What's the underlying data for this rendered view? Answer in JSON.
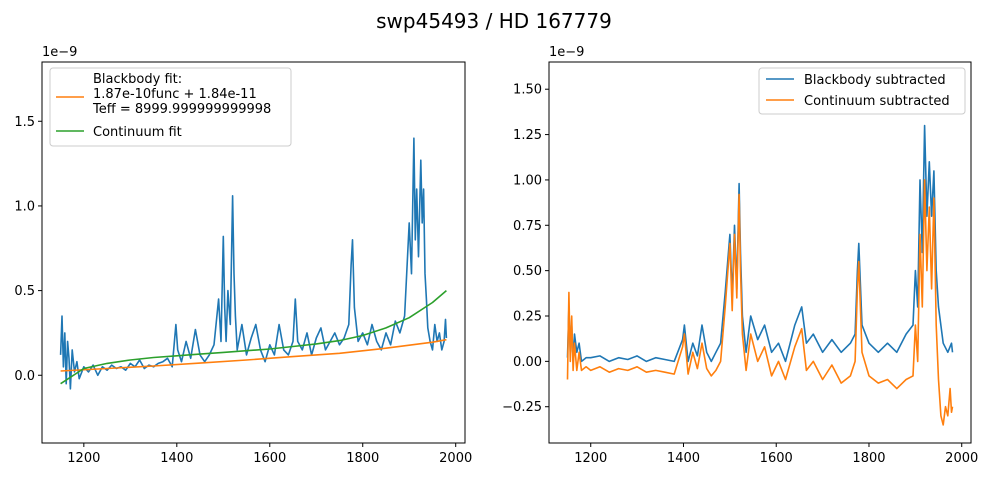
{
  "figure": {
    "title": "swp45493 / HD 167779"
  },
  "chart_data": [
    {
      "type": "line",
      "id": "left",
      "offset_text": "1e−9",
      "xlim": [
        1110,
        2020
      ],
      "ylim": [
        -0.4,
        1.85
      ],
      "xticks": [
        1200,
        1400,
        1600,
        1800,
        2000
      ],
      "yticks": [
        0.0,
        0.5,
        1.0,
        1.5
      ],
      "ytick_labels": [
        "0.0",
        "0.5",
        "1.0",
        "1.5"
      ],
      "legend_position": "upper-left",
      "legend": {
        "bb_header": "Blackbody fit:",
        "bb_line1": "1.87e-10func + 1.84e-11",
        "bb_line2": "Teff = 8999.999999999998",
        "continuum": "Continuum fit"
      },
      "series": [
        {
          "role": "flux",
          "color": "#1f77b4",
          "x": [
            1150,
            1153,
            1156,
            1159,
            1162,
            1165,
            1168,
            1171,
            1175,
            1180,
            1185,
            1190,
            1200,
            1210,
            1220,
            1230,
            1240,
            1250,
            1260,
            1270,
            1280,
            1290,
            1300,
            1310,
            1320,
            1330,
            1340,
            1350,
            1360,
            1370,
            1380,
            1390,
            1398,
            1402,
            1410,
            1420,
            1430,
            1440,
            1450,
            1460,
            1470,
            1480,
            1490,
            1495,
            1500,
            1503,
            1506,
            1510,
            1515,
            1520,
            1523,
            1526,
            1530,
            1540,
            1550,
            1560,
            1570,
            1580,
            1590,
            1600,
            1610,
            1620,
            1630,
            1640,
            1650,
            1655,
            1660,
            1670,
            1680,
            1690,
            1700,
            1710,
            1720,
            1730,
            1740,
            1750,
            1760,
            1770,
            1775,
            1778,
            1782,
            1790,
            1800,
            1810,
            1820,
            1830,
            1840,
            1850,
            1860,
            1870,
            1880,
            1890,
            1900,
            1905,
            1910,
            1913,
            1916,
            1920,
            1925,
            1928,
            1931,
            1934,
            1937,
            1940,
            1945,
            1950,
            1955,
            1960,
            1965,
            1970,
            1975,
            1978,
            1980
          ],
          "y": [
            0.12,
            0.35,
            0.05,
            0.25,
            -0.05,
            0.2,
            0.1,
            -0.08,
            0.15,
            0.02,
            0.08,
            -0.02,
            0.05,
            0.02,
            0.06,
            0.0,
            0.05,
            0.03,
            0.06,
            0.04,
            0.05,
            0.03,
            0.07,
            0.05,
            0.09,
            0.04,
            0.06,
            0.05,
            0.07,
            0.08,
            0.1,
            0.05,
            0.3,
            0.15,
            0.08,
            0.2,
            0.1,
            0.27,
            0.12,
            0.08,
            0.12,
            0.18,
            0.45,
            0.2,
            0.82,
            0.4,
            0.2,
            0.5,
            0.3,
            1.06,
            0.6,
            0.35,
            0.15,
            0.3,
            0.12,
            0.22,
            0.3,
            0.15,
            0.08,
            0.18,
            0.12,
            0.3,
            0.15,
            0.12,
            0.2,
            0.45,
            0.2,
            0.15,
            0.25,
            0.12,
            0.22,
            0.28,
            0.15,
            0.2,
            0.25,
            0.18,
            0.22,
            0.3,
            0.65,
            0.8,
            0.4,
            0.2,
            0.25,
            0.18,
            0.3,
            0.2,
            0.15,
            0.25,
            0.18,
            0.32,
            0.25,
            0.35,
            0.9,
            0.6,
            1.4,
            0.8,
            1.1,
            0.7,
            1.27,
            0.9,
            1.1,
            0.6,
            0.45,
            0.28,
            0.2,
            0.15,
            0.3,
            0.2,
            0.25,
            0.15,
            0.2,
            0.33,
            0.22
          ]
        },
        {
          "role": "blackbody fit",
          "color": "#ff7f0e",
          "x": [
            1150,
            1250,
            1350,
            1450,
            1550,
            1650,
            1750,
            1850,
            1950,
            1980
          ],
          "y": [
            0.025,
            0.04,
            0.055,
            0.072,
            0.09,
            0.11,
            0.13,
            0.16,
            0.195,
            0.21
          ]
        },
        {
          "role": "continuum fit",
          "color": "#2ca02c",
          "x": [
            1150,
            1200,
            1250,
            1300,
            1350,
            1400,
            1450,
            1500,
            1550,
            1600,
            1650,
            1700,
            1750,
            1800,
            1850,
            1900,
            1950,
            1980
          ],
          "y": [
            -0.05,
            0.04,
            0.07,
            0.09,
            0.105,
            0.115,
            0.125,
            0.135,
            0.145,
            0.155,
            0.17,
            0.185,
            0.205,
            0.235,
            0.28,
            0.34,
            0.43,
            0.5
          ]
        }
      ]
    },
    {
      "type": "line",
      "id": "right",
      "offset_text": "1e−9",
      "xlim": [
        1110,
        2020
      ],
      "ylim": [
        -0.45,
        1.65
      ],
      "xticks": [
        1200,
        1400,
        1600,
        1800,
        2000
      ],
      "yticks": [
        -0.25,
        0.0,
        0.25,
        0.5,
        0.75,
        1.0,
        1.25,
        1.5
      ],
      "ytick_labels": [
        "−0.25",
        "0.00",
        "0.25",
        "0.50",
        "0.75",
        "1.00",
        "1.25",
        "1.50"
      ],
      "legend_position": "upper-right",
      "legend": {
        "blackbody": "Blackbody subtracted",
        "continuum": "Continuum subtracted"
      },
      "series": [
        {
          "name": "Blackbody subtracted",
          "color": "#1f77b4",
          "x": [
            1150,
            1153,
            1156,
            1159,
            1162,
            1165,
            1170,
            1175,
            1180,
            1190,
            1200,
            1220,
            1240,
            1260,
            1280,
            1300,
            1320,
            1340,
            1360,
            1380,
            1398,
            1402,
            1410,
            1420,
            1430,
            1440,
            1450,
            1460,
            1470,
            1480,
            1490,
            1500,
            1505,
            1510,
            1515,
            1520,
            1523,
            1527,
            1535,
            1545,
            1560,
            1575,
            1590,
            1605,
            1620,
            1640,
            1655,
            1665,
            1680,
            1700,
            1720,
            1740,
            1760,
            1770,
            1775,
            1778,
            1785,
            1800,
            1820,
            1840,
            1860,
            1880,
            1895,
            1900,
            1905,
            1910,
            1915,
            1920,
            1925,
            1930,
            1935,
            1940,
            1945,
            1950,
            1960,
            1970,
            1978,
            1980
          ],
          "y": [
            0.02,
            0.3,
            0.05,
            0.2,
            0.0,
            0.15,
            0.05,
            0.1,
            0.0,
            0.02,
            0.02,
            0.03,
            0.0,
            0.02,
            0.01,
            0.03,
            0.0,
            0.02,
            0.01,
            0.0,
            0.12,
            0.2,
            0.0,
            0.1,
            0.03,
            0.2,
            0.05,
            0.0,
            0.05,
            0.1,
            0.38,
            0.7,
            0.35,
            0.75,
            0.4,
            0.98,
            0.6,
            0.25,
            0.05,
            0.25,
            0.12,
            0.2,
            0.05,
            0.1,
            0.0,
            0.2,
            0.3,
            0.1,
            0.15,
            0.05,
            0.12,
            0.05,
            0.1,
            0.15,
            0.5,
            0.65,
            0.2,
            0.1,
            0.05,
            0.1,
            0.05,
            0.15,
            0.2,
            0.5,
            0.3,
            1.0,
            0.6,
            1.3,
            0.8,
            1.1,
            0.8,
            1.05,
            0.5,
            0.3,
            0.1,
            0.05,
            0.1,
            0.05
          ]
        },
        {
          "name": "Continuum subtracted",
          "color": "#ff7f0e",
          "x": [
            1150,
            1153,
            1156,
            1159,
            1162,
            1165,
            1170,
            1175,
            1180,
            1190,
            1200,
            1220,
            1240,
            1260,
            1280,
            1300,
            1320,
            1340,
            1360,
            1380,
            1398,
            1402,
            1410,
            1420,
            1430,
            1440,
            1450,
            1460,
            1470,
            1480,
            1490,
            1500,
            1505,
            1510,
            1515,
            1520,
            1523,
            1527,
            1535,
            1545,
            1560,
            1575,
            1590,
            1605,
            1620,
            1640,
            1655,
            1665,
            1680,
            1700,
            1720,
            1740,
            1760,
            1770,
            1775,
            1778,
            1785,
            1800,
            1820,
            1840,
            1860,
            1880,
            1895,
            1900,
            1905,
            1910,
            1915,
            1920,
            1925,
            1930,
            1935,
            1940,
            1945,
            1950,
            1955,
            1960,
            1965,
            1970,
            1975,
            1978,
            1980
          ],
          "y": [
            -0.1,
            0.38,
            0.0,
            0.25,
            -0.05,
            0.1,
            -0.05,
            0.05,
            -0.05,
            -0.03,
            -0.05,
            -0.03,
            -0.06,
            -0.04,
            -0.05,
            -0.03,
            -0.06,
            -0.05,
            -0.06,
            -0.07,
            0.08,
            0.15,
            -0.07,
            0.05,
            -0.04,
            0.1,
            -0.04,
            -0.08,
            -0.05,
            0.0,
            0.3,
            0.65,
            0.28,
            0.7,
            0.35,
            0.92,
            0.5,
            0.15,
            -0.05,
            0.15,
            0.0,
            0.08,
            -0.08,
            0.0,
            -0.1,
            0.08,
            0.18,
            -0.05,
            0.0,
            -0.1,
            -0.02,
            -0.12,
            -0.08,
            0.0,
            0.4,
            0.55,
            0.05,
            -0.08,
            -0.12,
            -0.1,
            -0.15,
            -0.1,
            -0.08,
            0.2,
            0.0,
            0.7,
            0.3,
            1.0,
            0.5,
            0.85,
            0.4,
            0.9,
            0.2,
            -0.1,
            -0.3,
            -0.35,
            -0.25,
            -0.3,
            -0.15,
            -0.28,
            -0.25
          ]
        }
      ]
    }
  ]
}
